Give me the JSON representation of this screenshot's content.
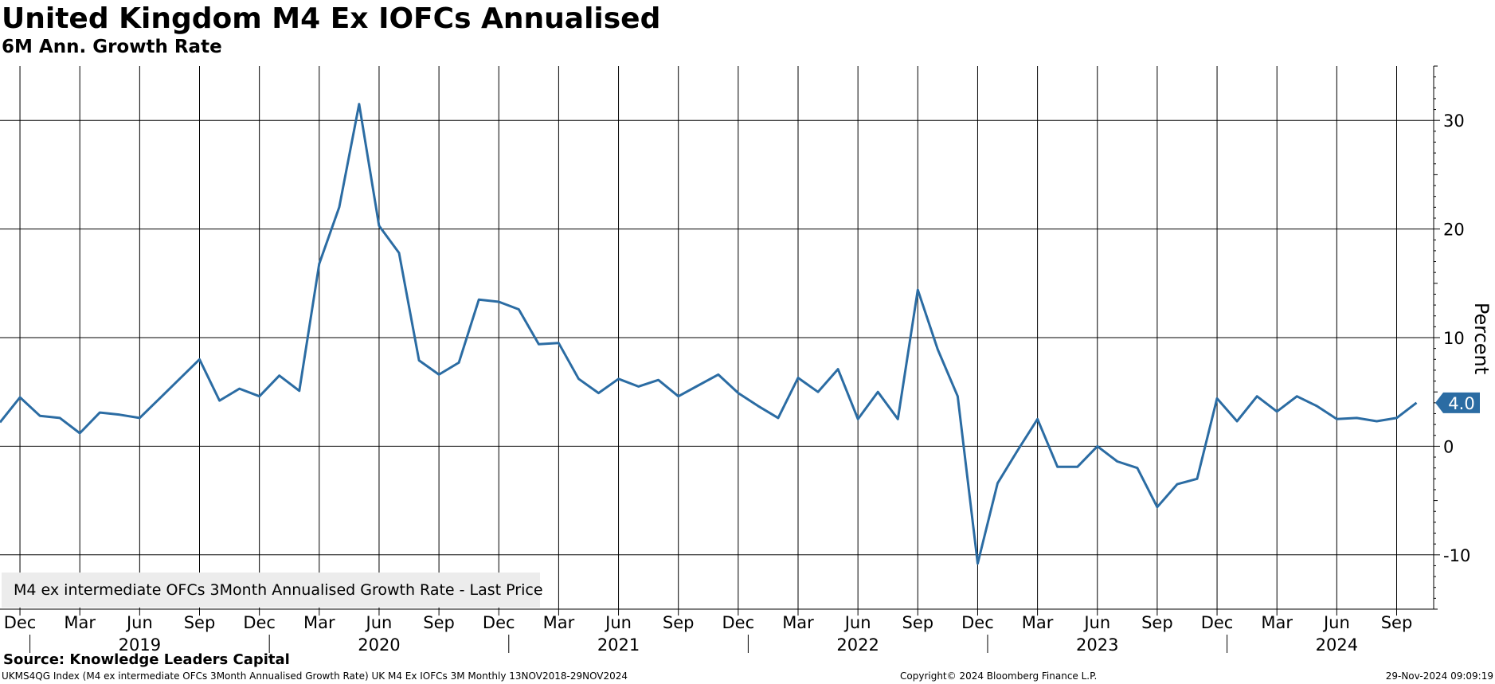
{
  "header": {
    "title": "United Kingdom M4 Ex IOFCs Annualised",
    "subtitle": "6M Ann. Growth Rate"
  },
  "footer": {
    "source": "Source: Knowledge Leaders Capital",
    "ticker_desc": "UKMS4QG Index (M4 ex intermediate OFCs 3Month Annualised Growth Rate) UK M4 Ex IOFCs 3M  Monthly 13NOV2018-29NOV2024",
    "copyright": "Copyright© 2024 Bloomberg Finance L.P.",
    "timestamp": "29-Nov-2024 09:09:19"
  },
  "legend": {
    "label": "M4 ex intermediate OFCs 3Month Annualised Growth Rate - Last Price"
  },
  "colors": {
    "series": "#2b6ca3",
    "grid": "#000000",
    "last_badge": "#2b6ca3"
  },
  "chart_data": {
    "type": "line",
    "title": "United Kingdom M4 Ex IOFCs Annualised",
    "subtitle": "6M Ann. Growth Rate",
    "ylabel": "Percent",
    "y_axis_position": "right",
    "ylim": [
      -15,
      35
    ],
    "yticks": [
      -10,
      0,
      10,
      20,
      30
    ],
    "grid": true,
    "legend_position": "bottom-left",
    "last_value_label": "4.0",
    "x_month_labels": [
      "Dec",
      "Mar",
      "Jun",
      "Sep",
      "Dec",
      "Mar",
      "Jun",
      "Sep",
      "Dec",
      "Mar",
      "Jun",
      "Sep",
      "Dec",
      "Mar",
      "Jun",
      "Sep",
      "Dec",
      "Mar",
      "Jun",
      "Sep",
      "Dec",
      "Mar",
      "Jun",
      "Sep"
    ],
    "x_year_labels": [
      "2019",
      "2020",
      "2021",
      "2022",
      "2023",
      "2024"
    ],
    "series": [
      {
        "name": "M4 ex intermediate OFCs 3Month Annualised Growth Rate - Last Price",
        "x": [
          "2018-11",
          "2018-12",
          "2019-01",
          "2019-02",
          "2019-03",
          "2019-04",
          "2019-05",
          "2019-06",
          "2019-07",
          "2019-08",
          "2019-09",
          "2019-10",
          "2019-11",
          "2019-12",
          "2020-01",
          "2020-02",
          "2020-03",
          "2020-04",
          "2020-05",
          "2020-06",
          "2020-07",
          "2020-08",
          "2020-09",
          "2020-10",
          "2020-11",
          "2020-12",
          "2021-01",
          "2021-02",
          "2021-03",
          "2021-04",
          "2021-05",
          "2021-06",
          "2021-07",
          "2021-08",
          "2021-09",
          "2021-10",
          "2021-11",
          "2021-12",
          "2022-01",
          "2022-02",
          "2022-03",
          "2022-04",
          "2022-05",
          "2022-06",
          "2022-07",
          "2022-08",
          "2022-09",
          "2022-10",
          "2022-11",
          "2022-12",
          "2023-01",
          "2023-02",
          "2023-03",
          "2023-04",
          "2023-05",
          "2023-06",
          "2023-07",
          "2023-08",
          "2023-09",
          "2023-10",
          "2023-11",
          "2023-12",
          "2024-01",
          "2024-02",
          "2024-03",
          "2024-04",
          "2024-05",
          "2024-06",
          "2024-07",
          "2024-08",
          "2024-09",
          "2024-10"
        ],
        "values": [
          2.2,
          4.5,
          2.8,
          2.6,
          1.2,
          3.1,
          2.9,
          2.6,
          4.4,
          6.2,
          8.0,
          4.2,
          5.3,
          4.6,
          6.5,
          5.1,
          16.8,
          22.0,
          31.5,
          20.3,
          17.8,
          7.9,
          6.6,
          7.7,
          13.5,
          13.3,
          12.6,
          9.4,
          9.5,
          6.2,
          4.9,
          6.2,
          5.5,
          6.1,
          4.6,
          5.6,
          6.6,
          4.9,
          3.7,
          2.6,
          6.3,
          5.0,
          7.1,
          2.5,
          5.0,
          2.5,
          14.4,
          8.9,
          4.6,
          -10.8,
          -3.4,
          -0.4,
          2.5,
          -1.9,
          -1.9,
          0.0,
          -1.4,
          -2.0,
          -5.6,
          -3.5,
          -3.0,
          4.4,
          2.3,
          4.6,
          3.2,
          4.6,
          3.7,
          2.5,
          2.6,
          2.3,
          2.6,
          4.0
        ]
      }
    ]
  }
}
